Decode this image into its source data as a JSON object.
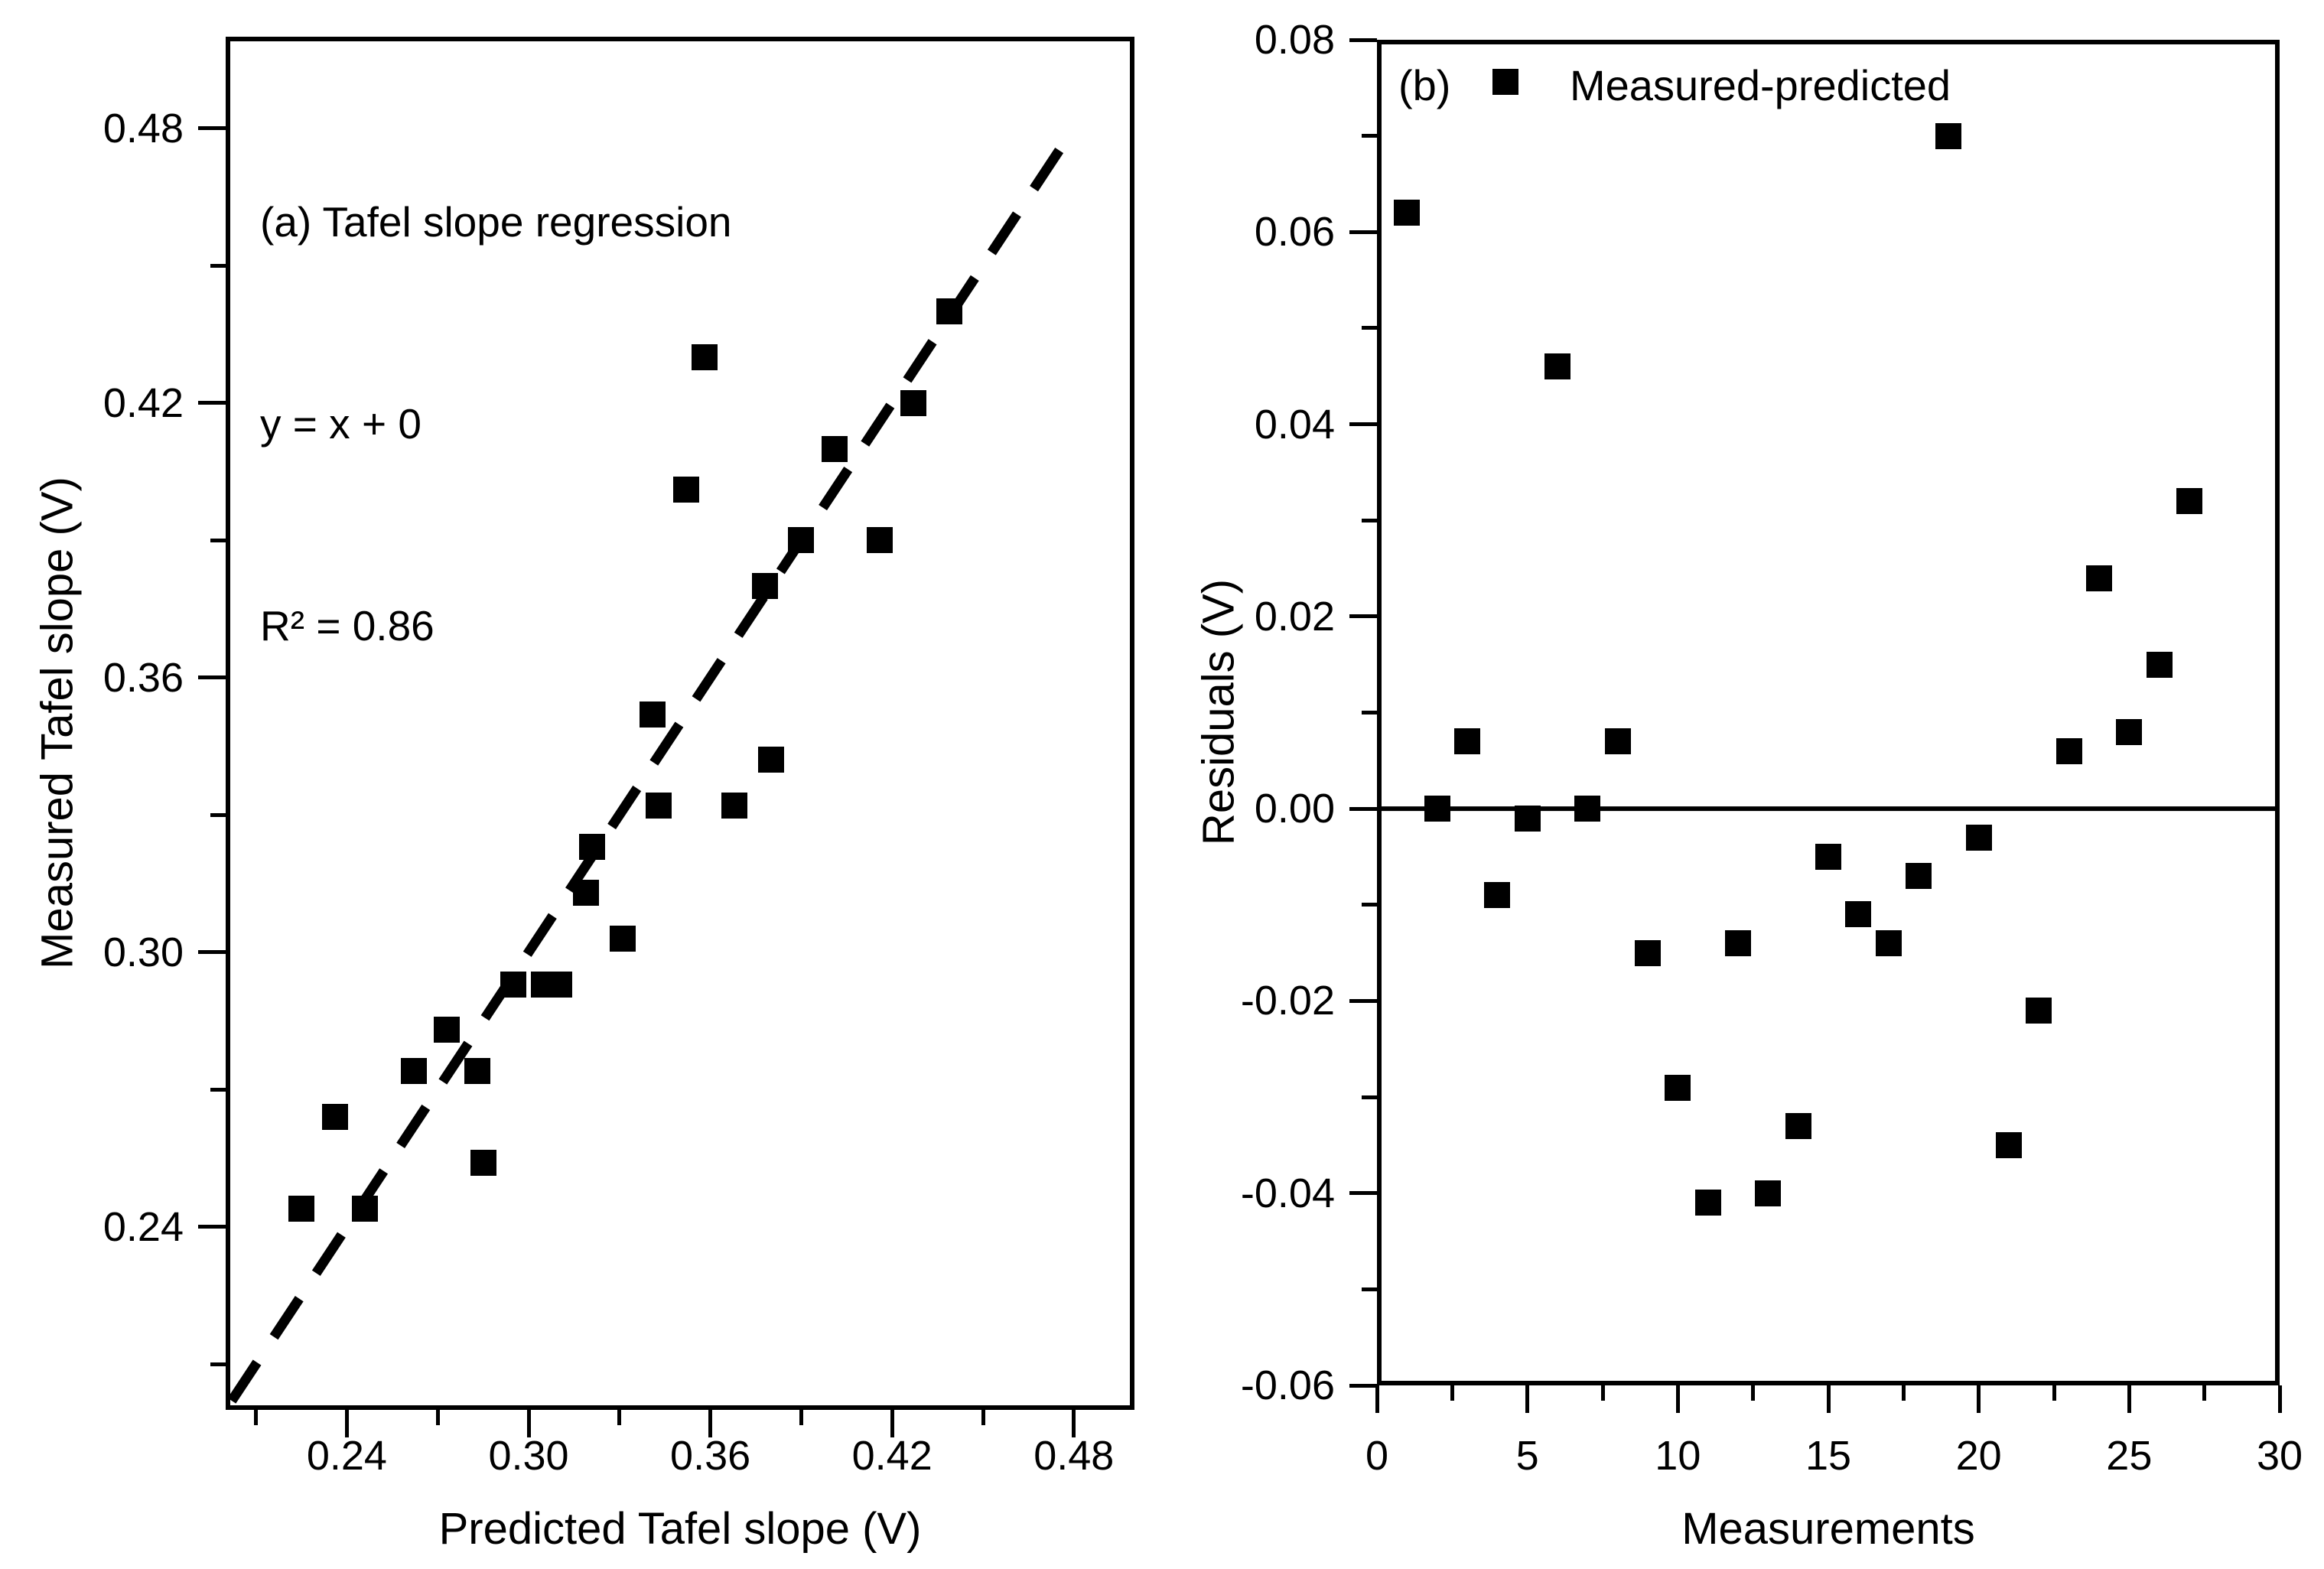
{
  "figure": {
    "background_color": "#ffffff",
    "ink_color": "#000000",
    "marker_shape": "filled-square"
  },
  "chart_data": [
    {
      "type": "scatter",
      "panel": "a",
      "annotations": [
        "(a) Tafel slope regression",
        "y = x + 0",
        "R² = 0.86"
      ],
      "xlabel": "Predicted Tafel slope (V)",
      "ylabel": "Measured Tafel slope (V)",
      "xlim": [
        0.2,
        0.5
      ],
      "ylim": [
        0.2,
        0.5
      ],
      "x_major_ticks": [
        0.24,
        0.3,
        0.36,
        0.42,
        0.48
      ],
      "x_tick_labels": [
        "0.24",
        "0.30",
        "0.36",
        "0.42",
        "0.48"
      ],
      "x_minor_ticks": [
        0.21,
        0.27,
        0.33,
        0.39,
        0.45
      ],
      "y_major_ticks": [
        0.24,
        0.3,
        0.36,
        0.42,
        0.48
      ],
      "y_tick_labels": [
        "0.24",
        "0.30",
        "0.36",
        "0.42",
        "0.48"
      ],
      "y_minor_ticks": [
        0.21,
        0.27,
        0.33,
        0.39,
        0.45
      ],
      "grid": false,
      "reference_line": {
        "style": "dashed",
        "equation": "y = x",
        "x1": 0.202,
        "y1": 0.202,
        "x2": 0.478,
        "y2": 0.478
      },
      "points": [
        [
          0.225,
          0.244
        ],
        [
          0.236,
          0.264
        ],
        [
          0.246,
          0.244
        ],
        [
          0.262,
          0.274
        ],
        [
          0.273,
          0.283
        ],
        [
          0.283,
          0.274
        ],
        [
          0.285,
          0.254
        ],
        [
          0.295,
          0.293
        ],
        [
          0.305,
          0.293
        ],
        [
          0.31,
          0.293
        ],
        [
          0.319,
          0.313
        ],
        [
          0.321,
          0.323
        ],
        [
          0.331,
          0.303
        ],
        [
          0.341,
          0.352
        ],
        [
          0.343,
          0.332
        ],
        [
          0.352,
          0.401
        ],
        [
          0.358,
          0.43
        ],
        [
          0.368,
          0.332
        ],
        [
          0.378,
          0.38
        ],
        [
          0.38,
          0.342
        ],
        [
          0.39,
          0.39
        ],
        [
          0.401,
          0.41
        ],
        [
          0.416,
          0.39
        ],
        [
          0.427,
          0.42
        ],
        [
          0.439,
          0.44
        ]
      ]
    },
    {
      "type": "scatter",
      "panel": "b",
      "panel_label": "(b)",
      "legend": {
        "position": "top-left",
        "entries": [
          {
            "marker": "filled-square",
            "label": "Measured-predicted"
          }
        ]
      },
      "xlabel": "Measurements",
      "ylabel": "Residuals (V)",
      "xlim": [
        0,
        30
      ],
      "ylim": [
        -0.06,
        0.08
      ],
      "x_major_ticks": [
        0,
        5,
        10,
        15,
        20,
        25,
        30
      ],
      "x_tick_labels": [
        "0",
        "5",
        "10",
        "15",
        "20",
        "25",
        "30"
      ],
      "x_minor_ticks": [
        2.5,
        7.5,
        12.5,
        17.5,
        22.5,
        27.5
      ],
      "y_major_ticks": [
        0.08,
        0.06,
        0.04,
        0.02,
        0.0,
        -0.02,
        -0.04,
        -0.06
      ],
      "y_tick_labels": [
        "0.08",
        "0.06",
        "0.04",
        "0.02",
        "0.00",
        "-0.02",
        "-0.04",
        "-0.06"
      ],
      "y_minor_ticks": [
        0.07,
        0.05,
        0.03,
        0.01,
        -0.01,
        -0.03,
        -0.05
      ],
      "grid": false,
      "zero_line": {
        "y": 0
      },
      "points": [
        [
          1,
          0.062
        ],
        [
          2,
          0.0
        ],
        [
          3,
          0.007
        ],
        [
          4,
          -0.009
        ],
        [
          5,
          -0.001
        ],
        [
          6,
          0.046
        ],
        [
          7,
          0.0
        ],
        [
          8,
          0.007
        ],
        [
          9,
          -0.015
        ],
        [
          10,
          -0.029
        ],
        [
          11,
          -0.041
        ],
        [
          12,
          -0.014
        ],
        [
          13,
          -0.04
        ],
        [
          14,
          -0.033
        ],
        [
          15,
          -0.005
        ],
        [
          16,
          -0.011
        ],
        [
          17,
          -0.014
        ],
        [
          18,
          -0.007
        ],
        [
          19,
          0.07
        ],
        [
          20,
          -0.003
        ],
        [
          21,
          -0.035
        ],
        [
          22,
          -0.021
        ],
        [
          23,
          0.006
        ],
        [
          24,
          0.024
        ],
        [
          25,
          0.008
        ],
        [
          26,
          0.015
        ],
        [
          27,
          0.032
        ]
      ]
    }
  ]
}
